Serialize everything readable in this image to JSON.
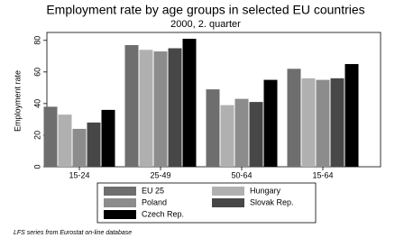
{
  "chart_data": {
    "type": "bar",
    "title": "Employment rate by age groups in selected EU countries",
    "subtitle": "2000, 2. quarter",
    "y_label": "Employment rate",
    "footnote": "LFS series from Eurostat on-line database",
    "categories": [
      "15-24",
      "25-49",
      "50-64",
      "15-64"
    ],
    "series": [
      {
        "name": "EU 25",
        "color": "#6e6e6e",
        "values": [
          38,
          77,
          49,
          62
        ]
      },
      {
        "name": "Hungary",
        "color": "#b0b0b0",
        "values": [
          33,
          74,
          39,
          56
        ]
      },
      {
        "name": "Poland",
        "color": "#8c8c8c",
        "values": [
          24,
          73,
          43,
          55
        ]
      },
      {
        "name": "Slovak Rep.",
        "color": "#474747",
        "values": [
          28,
          75,
          41,
          56
        ]
      },
      {
        "name": "Czech Rep.",
        "color": "#000000",
        "values": [
          36,
          81,
          55,
          65
        ]
      }
    ],
    "ylim": [
      0,
      85
    ],
    "yticks": [
      0,
      20,
      40,
      60,
      80
    ],
    "grid": false
  }
}
